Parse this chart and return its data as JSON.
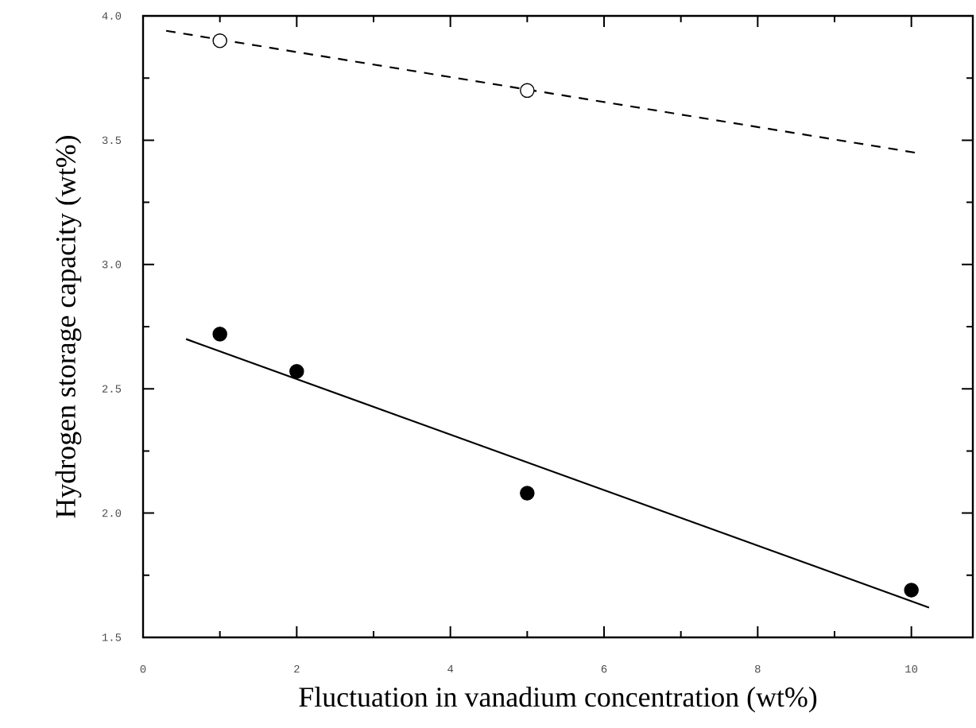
{
  "chart_data": {
    "type": "scatter",
    "xlabel": "Fluctuation in  vanadium concentration  (wt%)",
    "ylabel": "Hydrogen storage capacity  (wt%)",
    "xlim": [
      0,
      10.8
    ],
    "ylim": [
      1.5,
      4.0
    ],
    "xticks": [
      0,
      2,
      4,
      6,
      8,
      10
    ],
    "yticks": [
      {
        "value": 1.5,
        "label": "1.5"
      },
      {
        "value": 2.0,
        "label": "2.0"
      },
      {
        "value": 2.5,
        "label": "2.5"
      },
      {
        "value": 3.0,
        "label": "3.0"
      },
      {
        "value": 3.5,
        "label": "3.5"
      },
      {
        "value": 4.0,
        "label": "4.0"
      }
    ],
    "series": [
      {
        "marker": "circle",
        "color": "#000000",
        "x": [
          1,
          2,
          5,
          10
        ],
        "values": [
          2.72,
          2.57,
          2.08,
          1.69
        ]
      },
      {
        "type": "line",
        "marker": "none",
        "line_style": "solid",
        "color": "#000000",
        "x": [
          0.56,
          10.23
        ],
        "values": [
          2.7,
          1.62
        ]
      },
      {
        "marker": "circle",
        "color": "#ffffff",
        "x": [
          1,
          5
        ],
        "values": [
          3.9,
          3.7
        ]
      },
      {
        "type": "line",
        "marker": "none",
        "line_style": "dashed",
        "color": "#000000",
        "x": [
          0.3,
          10.05
        ],
        "values": [
          3.94,
          3.45
        ]
      }
    ]
  }
}
